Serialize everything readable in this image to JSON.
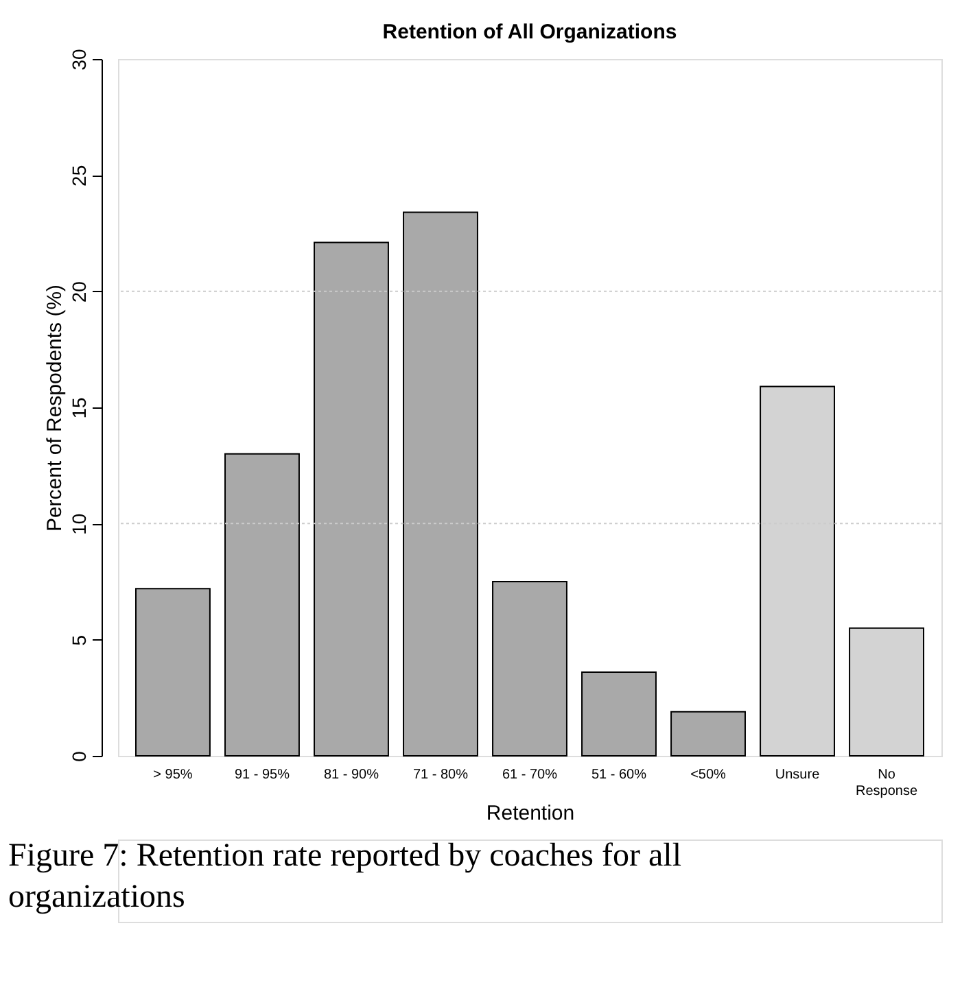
{
  "chart_data": {
    "type": "bar",
    "title": "Retention of All Organizations",
    "xlabel": "Retention",
    "ylabel": "Percent of Respodents (%)",
    "categories": [
      "> 95%",
      "91 - 95%",
      "81 - 90%",
      "71 - 80%",
      "61 - 70%",
      "51 - 60%",
      "<50%",
      "Unsure",
      "No\nResponse"
    ],
    "values": [
      7.2,
      13.0,
      22.1,
      23.4,
      7.5,
      3.6,
      1.9,
      15.9,
      5.5
    ],
    "colors": [
      "#a9a9a9",
      "#a9a9a9",
      "#a9a9a9",
      "#a9a9a9",
      "#a9a9a9",
      "#a9a9a9",
      "#a9a9a9",
      "#d3d3d3",
      "#d3d3d3"
    ],
    "ylim": [
      0,
      30
    ],
    "yticks": [
      0,
      5,
      10,
      15,
      20,
      25,
      30
    ],
    "ref_lines": [
      {
        "axis": "y",
        "value": 10,
        "line_style": "dotted",
        "color": "#cccccc"
      },
      {
        "axis": "y",
        "value": 20,
        "line_style": "dotted",
        "color": "#cccccc"
      }
    ],
    "annotations": [
      "Figure 7: Retention rate reported by coaches for all organizations"
    ]
  }
}
